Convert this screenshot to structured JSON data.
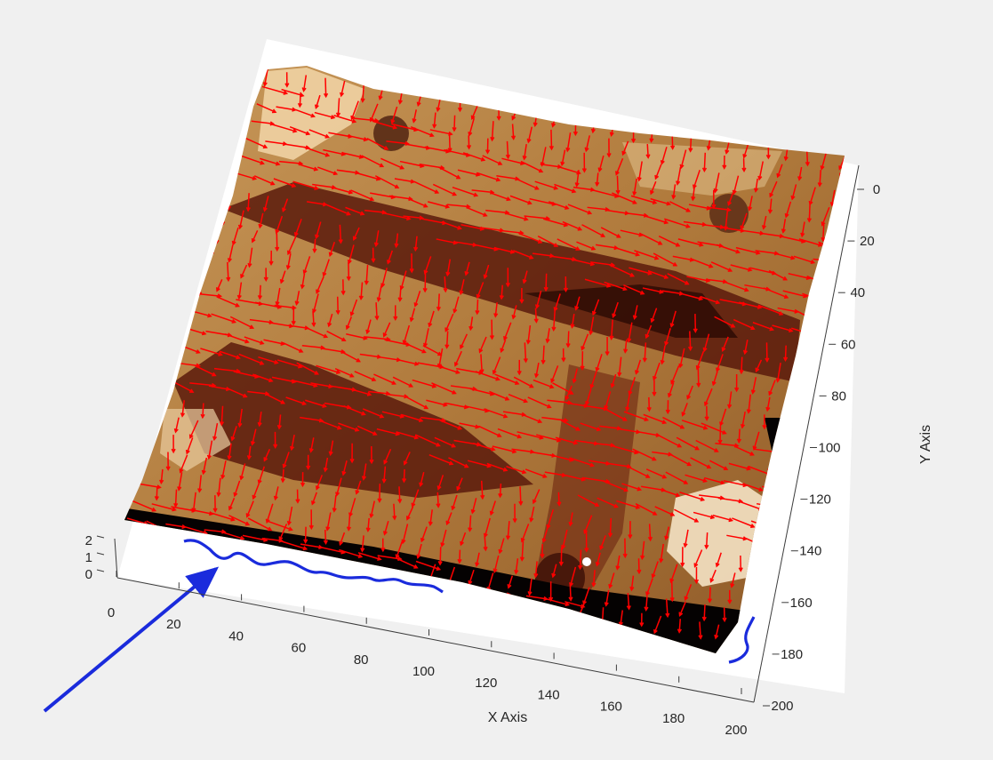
{
  "chart_data": {
    "type": "surface",
    "xlabel": "X Axis",
    "ylabel": "Y Axis",
    "zlabel": "",
    "xlim": [
      0,
      200
    ],
    "ylim": [
      0,
      200
    ],
    "zlim": [
      0,
      2
    ],
    "x_ticks": [
      0,
      20,
      40,
      60,
      80,
      100,
      120,
      140,
      160,
      180,
      200
    ],
    "y_ticks": [
      0,
      20,
      40,
      60,
      80,
      100,
      120,
      140,
      160,
      180,
      200
    ],
    "z_ticks": [
      0,
      1,
      2
    ],
    "surface_colormap": "copper",
    "overlays": [
      {
        "kind": "quiver",
        "color": "#ff0000"
      },
      {
        "kind": "line",
        "color": "#1a2bdc"
      },
      {
        "kind": "arrow",
        "color": "#1a2bdc"
      }
    ]
  }
}
